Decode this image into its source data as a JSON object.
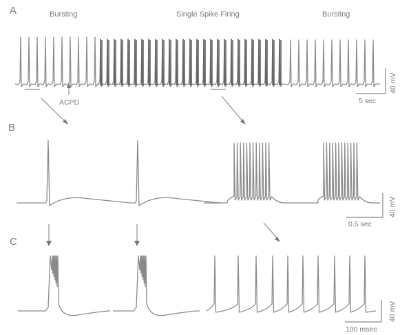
{
  "panels": {
    "a": {
      "letter": "A",
      "header_left": "Bursting",
      "header_mid": "Single Spike Firing",
      "header_right": "Bursting",
      "annotation": "ACPD",
      "scale_v": "40 mV",
      "scale_t": "5 sec"
    },
    "b": {
      "letter": "B",
      "scale_v": "40 mV",
      "scale_t": "0.5 sec"
    },
    "c": {
      "letter": "C",
      "scale_v": "40 mV",
      "scale_t": "100 msec"
    }
  },
  "colors": {
    "trace": "#8a8a8a",
    "dark_trace": "#5a5a5a",
    "text": "#777777"
  }
}
